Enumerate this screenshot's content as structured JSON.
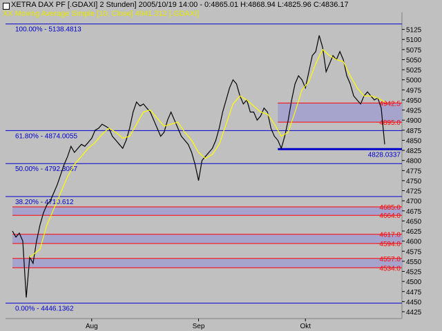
{
  "chart_data": {
    "type": "line",
    "header": {
      "title": "XETRA DAX PF [.GDAXI]  2 Stunden] 2005/10/19 14:00 - 0:4865.01 H:4868.94 L:4825.96 C:4836.17",
      "ma_label": "XX Moving Average Simple [10, Close] 4941.312 [.GDAXI]"
    },
    "colors": {
      "background": "#c0c0c0",
      "price_line": "#000000",
      "ma_line": "#ffff00",
      "fib_line": "#0000cc",
      "sr_line": "#ff0000",
      "zone_fill": "#a6a4cc",
      "label_blue": "#0000cc",
      "label_red": "#ff0000"
    },
    "ylim": [
      4425,
      5150
    ],
    "y_ticks": [
      4425,
      4450,
      4475,
      4500,
      4525,
      4550,
      4575,
      4600,
      4625,
      4650,
      4675,
      4700,
      4725,
      4750,
      4775,
      4800,
      4825,
      4850,
      4875,
      4900,
      4925,
      4950,
      4975,
      5000,
      5025,
      5050,
      5075,
      5100,
      5125
    ],
    "x_ticks": [
      {
        "label": "Aug",
        "x": 23
      },
      {
        "label": "Sep",
        "x": 54
      },
      {
        "label": "Okt",
        "x": 85
      }
    ],
    "xlim": [
      0,
      109
    ],
    "fib_levels": [
      {
        "label": "100.00% - 5138.4813",
        "value": 5138.4813
      },
      {
        "label": "61.80% - 4874.0055",
        "value": 4874.0055
      },
      {
        "label": "50.00% - 4792.3087",
        "value": 4792.3087
      },
      {
        "label": "38.20% - 4710.612",
        "value": 4710.612
      },
      {
        "label": "0.00% - 4446.1362",
        "value": 4446.1362
      }
    ],
    "zones": [
      {
        "top": 4942.5,
        "bottom": 4895.0,
        "top_label": "4942.5",
        "bottom_label": "4895.0",
        "x_start": 77
      },
      {
        "top": 4685.0,
        "bottom": 4664.0,
        "top_label": "4685.0",
        "bottom_label": "4664.0",
        "x_start": 0
      },
      {
        "top": 4617.0,
        "bottom": 4594.0,
        "top_label": "4617.0",
        "bottom_label": "4594.0",
        "x_start": 0
      },
      {
        "top": 4557.0,
        "bottom": 4534.0,
        "top_label": "4557.0",
        "bottom_label": "4534.0",
        "x_start": 0
      }
    ],
    "support": {
      "value": 4828.0337,
      "label": "4828.0337",
      "x_start": 77,
      "x_end": 109
    },
    "price": [
      [
        0,
        4625
      ],
      [
        1,
        4610
      ],
      [
        2,
        4620
      ],
      [
        3,
        4600
      ],
      [
        4,
        4460
      ],
      [
        5,
        4560
      ],
      [
        6,
        4545
      ],
      [
        7,
        4600
      ],
      [
        8,
        4640
      ],
      [
        9,
        4670
      ],
      [
        10,
        4690
      ],
      [
        11,
        4700
      ],
      [
        12,
        4720
      ],
      [
        13,
        4740
      ],
      [
        14,
        4765
      ],
      [
        15,
        4790
      ],
      [
        16,
        4810
      ],
      [
        17,
        4835
      ],
      [
        18,
        4820
      ],
      [
        19,
        4830
      ],
      [
        20,
        4840
      ],
      [
        21,
        4835
      ],
      [
        22,
        4845
      ],
      [
        23,
        4855
      ],
      [
        24,
        4875
      ],
      [
        25,
        4880
      ],
      [
        26,
        4890
      ],
      [
        27,
        4885
      ],
      [
        28,
        4880
      ],
      [
        29,
        4860
      ],
      [
        30,
        4850
      ],
      [
        31,
        4840
      ],
      [
        32,
        4830
      ],
      [
        33,
        4850
      ],
      [
        34,
        4880
      ],
      [
        35,
        4920
      ],
      [
        36,
        4945
      ],
      [
        37,
        4935
      ],
      [
        38,
        4940
      ],
      [
        39,
        4930
      ],
      [
        40,
        4920
      ],
      [
        41,
        4900
      ],
      [
        42,
        4880
      ],
      [
        43,
        4860
      ],
      [
        44,
        4870
      ],
      [
        45,
        4900
      ],
      [
        46,
        4920
      ],
      [
        47,
        4900
      ],
      [
        48,
        4880
      ],
      [
        49,
        4860
      ],
      [
        50,
        4850
      ],
      [
        51,
        4840
      ],
      [
        52,
        4820
      ],
      [
        53,
        4790
      ],
      [
        54,
        4750
      ],
      [
        55,
        4800
      ],
      [
        56,
        4810
      ],
      [
        57,
        4820
      ],
      [
        58,
        4830
      ],
      [
        59,
        4850
      ],
      [
        60,
        4880
      ],
      [
        61,
        4920
      ],
      [
        62,
        4950
      ],
      [
        63,
        4980
      ],
      [
        64,
        5000
      ],
      [
        65,
        4990
      ],
      [
        66,
        4960
      ],
      [
        67,
        4940
      ],
      [
        68,
        4950
      ],
      [
        69,
        4920
      ],
      [
        70,
        4920
      ],
      [
        71,
        4900
      ],
      [
        72,
        4910
      ],
      [
        73,
        4930
      ],
      [
        74,
        4920
      ],
      [
        75,
        4880
      ],
      [
        76,
        4860
      ],
      [
        77,
        4850
      ],
      [
        78,
        4830
      ],
      [
        79,
        4860
      ],
      [
        80,
        4900
      ],
      [
        81,
        4950
      ],
      [
        82,
        4990
      ],
      [
        83,
        5010
      ],
      [
        84,
        5000
      ],
      [
        85,
        4980
      ],
      [
        86,
        5020
      ],
      [
        87,
        5060
      ],
      [
        88,
        5070
      ],
      [
        89,
        5110
      ],
      [
        90,
        5080
      ],
      [
        91,
        5020
      ],
      [
        92,
        5040
      ],
      [
        93,
        5060
      ],
      [
        94,
        5050
      ],
      [
        95,
        5070
      ],
      [
        96,
        5050
      ],
      [
        97,
        5010
      ],
      [
        98,
        4990
      ],
      [
        99,
        4960
      ],
      [
        100,
        4950
      ],
      [
        101,
        4940
      ],
      [
        102,
        4960
      ],
      [
        103,
        4970
      ],
      [
        104,
        4960
      ],
      [
        105,
        4950
      ],
      [
        106,
        4955
      ],
      [
        107,
        4930
      ],
      [
        108,
        4840
      ]
    ],
    "moving_average": [
      [
        5,
        4560
      ],
      [
        8,
        4580
      ],
      [
        10,
        4640
      ],
      [
        12,
        4680
      ],
      [
        14,
        4720
      ],
      [
        16,
        4760
      ],
      [
        18,
        4790
      ],
      [
        20,
        4810
      ],
      [
        22,
        4830
      ],
      [
        24,
        4845
      ],
      [
        26,
        4865
      ],
      [
        28,
        4880
      ],
      [
        30,
        4870
      ],
      [
        32,
        4855
      ],
      [
        34,
        4860
      ],
      [
        36,
        4890
      ],
      [
        38,
        4920
      ],
      [
        40,
        4925
      ],
      [
        42,
        4905
      ],
      [
        44,
        4885
      ],
      [
        46,
        4890
      ],
      [
        48,
        4895
      ],
      [
        50,
        4870
      ],
      [
        52,
        4850
      ],
      [
        54,
        4820
      ],
      [
        56,
        4805
      ],
      [
        58,
        4815
      ],
      [
        60,
        4840
      ],
      [
        62,
        4890
      ],
      [
        64,
        4940
      ],
      [
        66,
        4960
      ],
      [
        68,
        4950
      ],
      [
        70,
        4935
      ],
      [
        72,
        4920
      ],
      [
        74,
        4915
      ],
      [
        76,
        4890
      ],
      [
        78,
        4860
      ],
      [
        80,
        4870
      ],
      [
        82,
        4920
      ],
      [
        84,
        4975
      ],
      [
        86,
        4995
      ],
      [
        88,
        5040
      ],
      [
        90,
        5075
      ],
      [
        92,
        5060
      ],
      [
        94,
        5050
      ],
      [
        96,
        5045
      ],
      [
        98,
        5010
      ],
      [
        100,
        4980
      ],
      [
        102,
        4960
      ],
      [
        104,
        4960
      ],
      [
        106,
        4955
      ],
      [
        108,
        4945
      ]
    ]
  }
}
